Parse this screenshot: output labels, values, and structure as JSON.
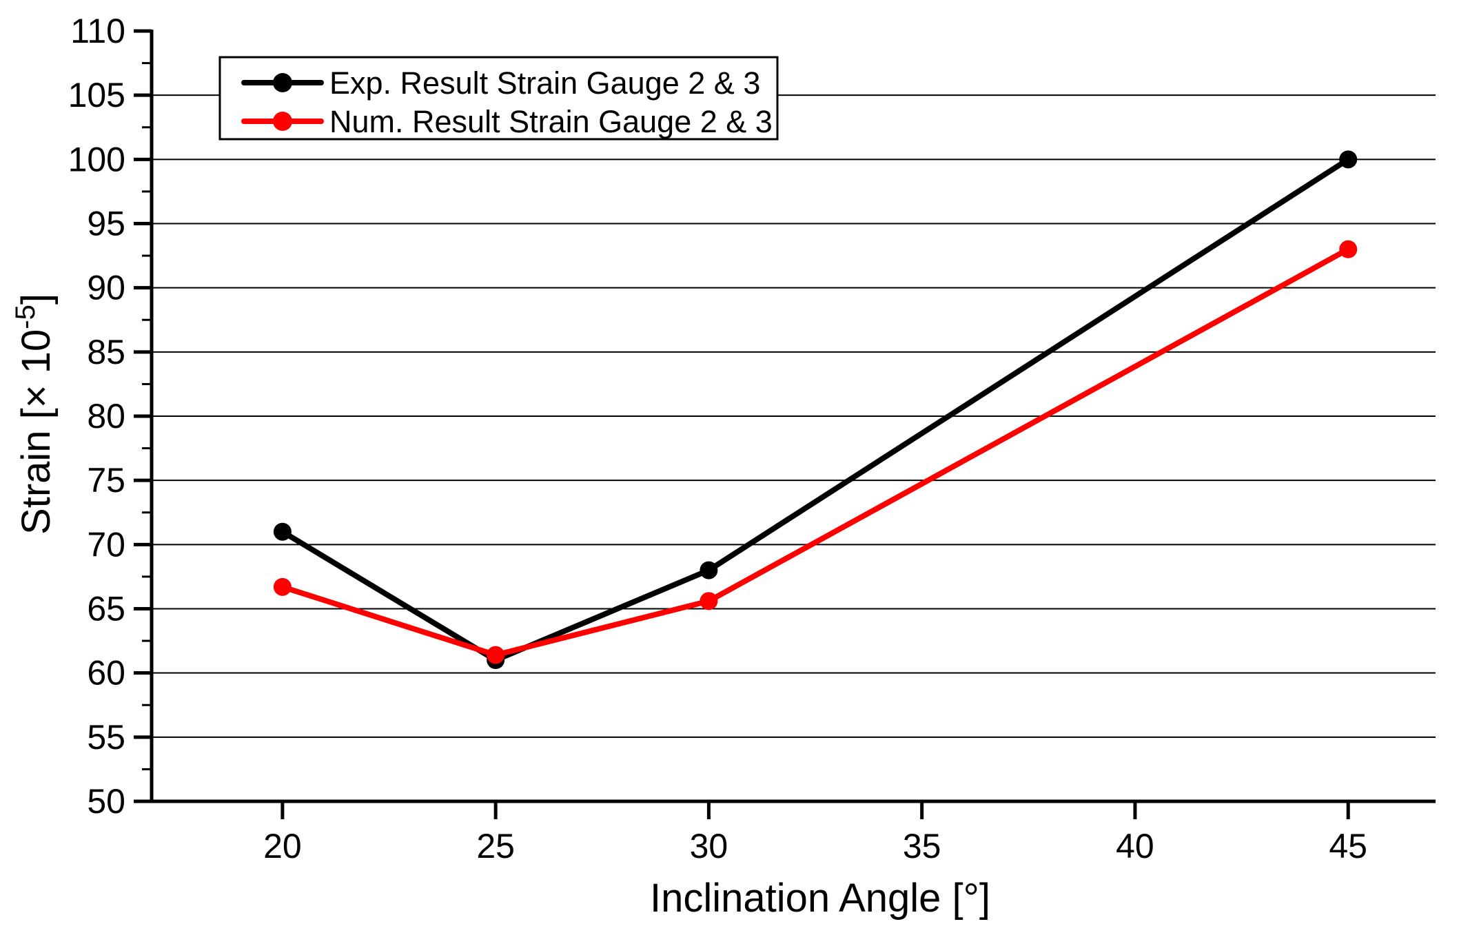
{
  "figure": {
    "background": "#ffffff"
  },
  "chart_data": {
    "type": "line",
    "title": "",
    "xlabel": "Inclination Angle [°]",
    "ylabel": "Strain [× 10⁻⁵]",
    "ylabel_parts": [
      {
        "text": "Strain [× 10",
        "sup": false
      },
      {
        "text": "-5",
        "sup": true
      },
      {
        "text": "]",
        "sup": false
      }
    ],
    "x_ticks": [
      20,
      25,
      30,
      35,
      40,
      45
    ],
    "y_ticks": [
      50,
      55,
      60,
      65,
      70,
      75,
      80,
      85,
      90,
      95,
      100,
      105,
      110
    ],
    "y_minor_ticks": [
      52.5,
      57.5,
      62.5,
      67.5,
      72.5,
      77.5,
      82.5,
      87.5,
      92.5,
      97.5,
      102.5,
      107.5
    ],
    "xlim": [
      16.93,
      47.05
    ],
    "ylim": [
      50,
      110
    ],
    "grid": {
      "horizontal_major": true,
      "vertical": false,
      "color": "#000000"
    },
    "axis_color": "#000000",
    "legend": {
      "position": "top-left-inside",
      "border_color": "#000000",
      "background": "#ffffff",
      "entries": [
        "Exp. Result Strain Gauge 2 & 3",
        "Num. Result Strain Gauge 2 & 3"
      ]
    },
    "series": [
      {
        "name": "Exp. Result Strain Gauge 2 & 3",
        "color": "#000000",
        "marker": "circle",
        "x": [
          20,
          25,
          30,
          45
        ],
        "y": [
          71.0,
          61.0,
          68.0,
          100.0
        ]
      },
      {
        "name": "Num. Result Strain Gauge 2 & 3",
        "color": "#ff0000",
        "marker": "circle",
        "x": [
          20,
          25,
          30,
          45
        ],
        "y": [
          66.7,
          61.4,
          65.6,
          93.0
        ]
      }
    ]
  }
}
